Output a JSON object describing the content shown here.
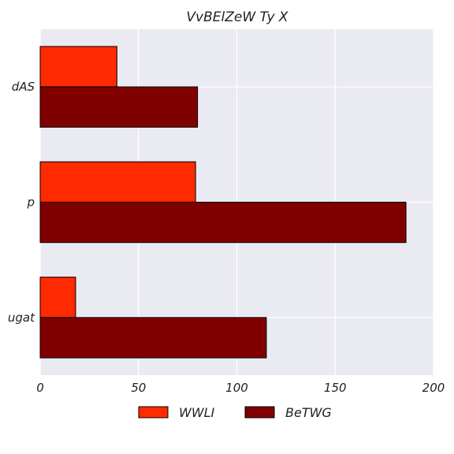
{
  "chart_data": {
    "type": "bar",
    "orientation": "horizontal",
    "title": "VvBElZeW Ty X",
    "xlabel": "",
    "ylabel": "",
    "categories": [
      "dAS",
      "p",
      "ugat"
    ],
    "series": [
      {
        "name": "WWLI",
        "values": [
          39,
          79,
          18
        ],
        "color": "#ff2a00"
      },
      {
        "name": "BeTWG",
        "values": [
          80,
          186,
          115
        ],
        "color": "#800000"
      }
    ],
    "xlim": [
      0,
      200
    ],
    "xticks": [
      0,
      50,
      100,
      150,
      200
    ],
    "grid": true,
    "legend_position": "bottom-center",
    "background_color": "#eaeaf2",
    "grid_color": "#ffffff"
  }
}
